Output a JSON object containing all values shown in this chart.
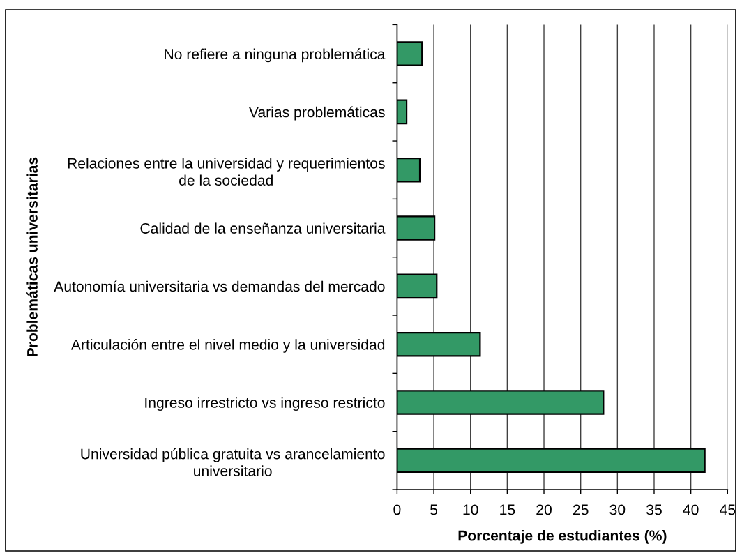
{
  "chart_data": {
    "type": "bar",
    "orientation": "horizontal",
    "xlabel": "Porcentaje de estudiantes (%)",
    "ylabel": "Problemáticas universitarias",
    "categories": [
      "No refiere a ninguna problemática",
      "Varias problemáticas",
      "Relaciones entre la universidad y requerimientos\nde la sociedad",
      "Calidad de la enseñanza universitaria",
      "Autonomía universitaria vs demandas del mercado",
      "Articulación entre el nivel medio y la universidad",
      "Ingreso irrestricto vs ingreso restricto",
      "Universidad pública gratuita vs arancelamiento\nuniversitario"
    ],
    "values": [
      3.4,
      1.3,
      3.1,
      5.1,
      5.4,
      11.3,
      28.1,
      41.9
    ],
    "color": "#339966",
    "xlim": [
      0,
      45
    ],
    "xticks": [
      0,
      5,
      10,
      15,
      20,
      25,
      30,
      35,
      40,
      45
    ],
    "grid": "x"
  }
}
